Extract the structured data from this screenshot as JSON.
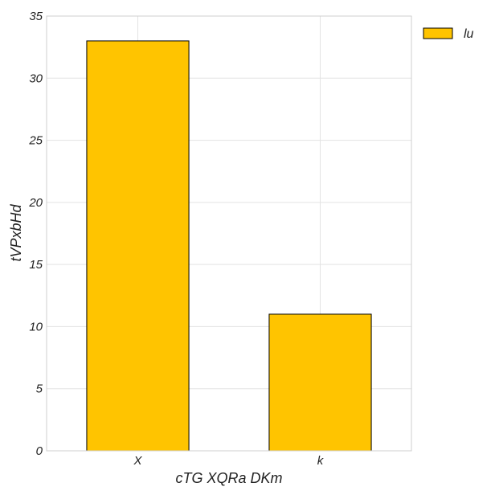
{
  "chart_data": {
    "type": "bar",
    "categories": [
      "X",
      "k"
    ],
    "series": [
      {
        "name": "lu",
        "values": [
          33,
          11
        ],
        "color": "#ffc400"
      }
    ],
    "xlabel": "cTG  XQRa  DKm",
    "ylabel": "tVPxbHd",
    "ylim": [
      0,
      35
    ],
    "yticks": [
      0,
      5,
      10,
      15,
      20,
      25,
      30,
      35
    ],
    "grid": true,
    "legend": "top-right outside"
  }
}
